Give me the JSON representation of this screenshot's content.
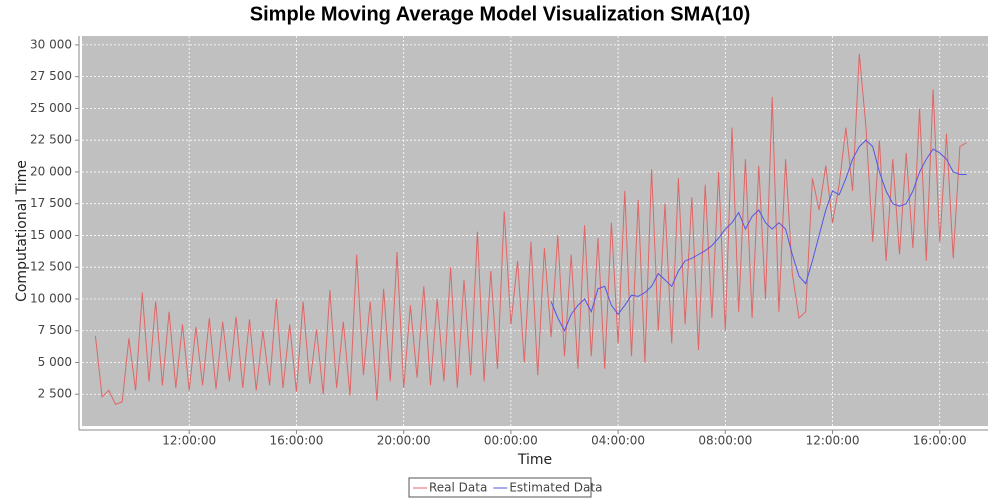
{
  "chart_data": {
    "type": "line",
    "title": "Simple Moving Average Model Visualization SMA(10)",
    "x_label": "Time",
    "y_label": "Computational Time",
    "xlim": [
      8,
      41.8
    ],
    "ylim": [
      0,
      30700
    ],
    "xticks": [
      {
        "value": 12,
        "label": "12:00:00"
      },
      {
        "value": 16,
        "label": "16:00:00"
      },
      {
        "value": 20,
        "label": "20:00:00"
      },
      {
        "value": 24,
        "label": "00:00:00"
      },
      {
        "value": 28,
        "label": "04:00:00"
      },
      {
        "value": 32,
        "label": "08:00:00"
      },
      {
        "value": 36,
        "label": "12:00:00"
      },
      {
        "value": 40,
        "label": "16:00:00"
      }
    ],
    "yticks": [
      {
        "value": 2500,
        "label": "2 500"
      },
      {
        "value": 5000,
        "label": "5 000"
      },
      {
        "value": 7500,
        "label": "7 500"
      },
      {
        "value": 10000,
        "label": "10 000"
      },
      {
        "value": 12500,
        "label": "12 500"
      },
      {
        "value": 15000,
        "label": "15 000"
      },
      {
        "value": 17500,
        "label": "17 500"
      },
      {
        "value": 20000,
        "label": "20 000"
      },
      {
        "value": 22500,
        "label": "22 500"
      },
      {
        "value": 25000,
        "label": "25 000"
      },
      {
        "value": 27500,
        "label": "27 500"
      },
      {
        "value": 30000,
        "label": "30 000"
      }
    ],
    "grid": true,
    "legend": "bottom",
    "x": [
      8.5,
      8.75,
      9,
      9.25,
      9.5,
      9.75,
      10,
      10.25,
      10.5,
      10.75,
      11,
      11.25,
      11.5,
      11.75,
      12,
      12.25,
      12.5,
      12.75,
      13,
      13.25,
      13.5,
      13.75,
      14,
      14.25,
      14.5,
      14.75,
      15,
      15.25,
      15.5,
      15.75,
      16,
      16.25,
      16.5,
      16.75,
      17,
      17.25,
      17.5,
      17.75,
      18,
      18.25,
      18.5,
      18.75,
      19,
      19.25,
      19.5,
      19.75,
      20,
      20.25,
      20.5,
      20.75,
      21,
      21.25,
      21.5,
      21.75,
      22,
      22.25,
      22.5,
      22.75,
      23,
      23.25,
      23.5,
      23.75,
      24,
      24.25,
      24.5,
      24.75,
      25,
      25.25,
      25.5,
      25.75,
      26,
      26.25,
      26.5,
      26.75,
      27,
      27.25,
      27.5,
      27.75,
      28,
      28.25,
      28.5,
      28.75,
      29,
      29.25,
      29.5,
      29.75,
      30,
      30.25,
      30.5,
      30.75,
      31,
      31.25,
      31.5,
      31.75,
      32,
      32.25,
      32.5,
      32.75,
      33,
      33.25,
      33.5,
      33.75,
      34,
      34.25,
      34.5,
      34.75,
      35,
      35.25,
      35.5,
      35.75,
      36,
      36.25,
      36.5,
      36.75,
      37,
      37.25,
      37.5,
      37.75,
      38,
      38.25,
      38.5,
      38.75,
      39,
      39.25,
      39.5,
      39.75,
      40,
      40.25,
      40.5,
      40.75,
      41
    ],
    "series": [
      {
        "name": "Real Data",
        "color": "#e06666",
        "values": [
          7100,
          2300,
          2800,
          1700,
          1900,
          6900,
          2800,
          10500,
          3500,
          9800,
          3200,
          9000,
          3000,
          8000,
          2800,
          7800,
          3200,
          8500,
          2900,
          8200,
          3500,
          8600,
          3000,
          8400,
          2800,
          7500,
          3200,
          10000,
          3000,
          8000,
          2700,
          9800,
          3300,
          7600,
          2500,
          10700,
          3000,
          8200,
          2400,
          13500,
          4000,
          9800,
          2000,
          10800,
          3500,
          13700,
          3000,
          9500,
          3800,
          11000,
          3200,
          10000,
          3500,
          12500,
          3000,
          11500,
          4000,
          15300,
          3500,
          12200,
          4500,
          16900,
          8000,
          13000,
          5000,
          14500,
          4000,
          14000,
          7000,
          15000,
          5500,
          13500,
          4500,
          15800,
          5500,
          14800,
          4500,
          16000,
          6500,
          18500,
          5500,
          17800,
          5000,
          20200,
          7500,
          17500,
          6500,
          19500,
          8000,
          18000,
          6000,
          19000,
          8500,
          20000,
          7500,
          23500,
          9000,
          21000,
          8500,
          20500,
          10000,
          25900,
          9000,
          21000,
          12000,
          8500,
          9000,
          19500,
          17000,
          20500,
          16000,
          19000,
          23500,
          18500,
          29300,
          23500,
          14500,
          22500,
          13000,
          21000,
          13500,
          21500,
          14000,
          25000,
          13000,
          26500,
          14500,
          23000,
          13200,
          22000,
          22300
        ]
      },
      {
        "name": "Estimated Data",
        "color": "#5555e6",
        "values": [
          null,
          null,
          null,
          null,
          null,
          null,
          null,
          null,
          null,
          null,
          null,
          null,
          null,
          null,
          null,
          null,
          null,
          null,
          null,
          null,
          null,
          null,
          null,
          null,
          null,
          null,
          null,
          null,
          null,
          null,
          null,
          null,
          null,
          null,
          null,
          null,
          null,
          null,
          null,
          null,
          null,
          null,
          null,
          null,
          null,
          null,
          null,
          null,
          null,
          null,
          null,
          null,
          null,
          null,
          null,
          null,
          null,
          null,
          null,
          null,
          null,
          null,
          null,
          null,
          null,
          null,
          null,
          null,
          9800,
          8500,
          7500,
          8800,
          9500,
          10000,
          9000,
          10800,
          11000,
          9500,
          8800,
          9500,
          10300,
          10200,
          10500,
          11000,
          12000,
          11500,
          11000,
          12200,
          13000,
          13200,
          13500,
          13800,
          14200,
          14800,
          15500,
          16000,
          16800,
          15500,
          16500,
          17000,
          16000,
          15500,
          16000,
          15500,
          13500,
          11800,
          11200,
          13000,
          15000,
          17000,
          18500,
          18200,
          19500,
          21000,
          22000,
          22500,
          22000,
          20000,
          18500,
          17500,
          17300,
          17500,
          18500,
          20000,
          21000,
          21800,
          21500,
          21000,
          20000,
          19800,
          19800
        ]
      }
    ]
  }
}
